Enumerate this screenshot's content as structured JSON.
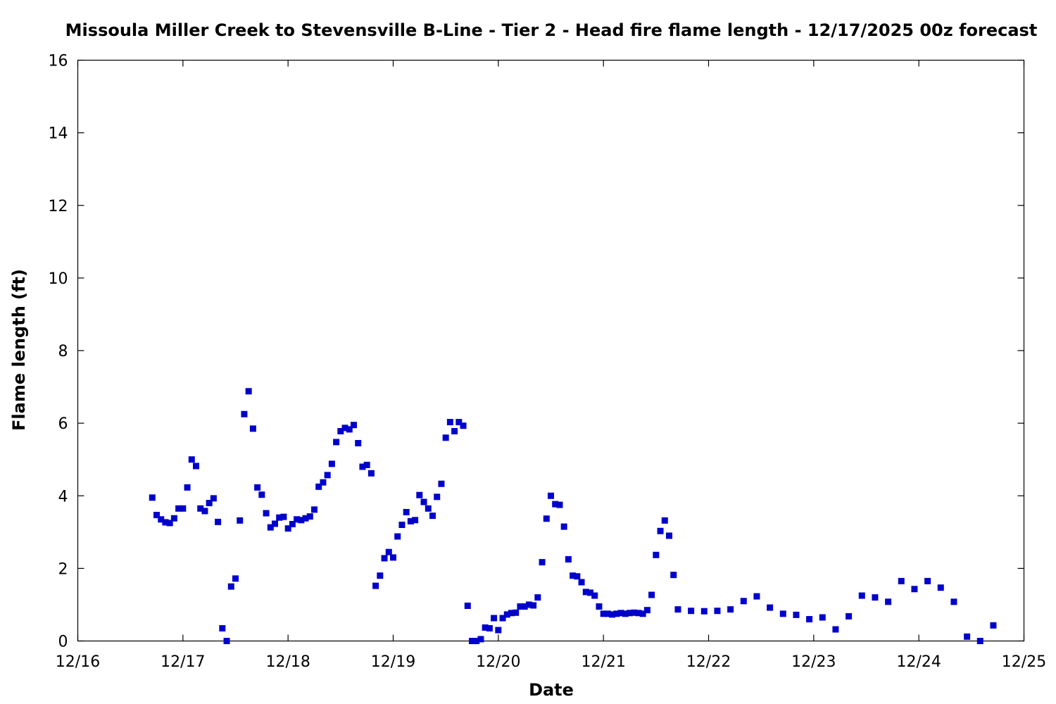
{
  "chart_data": {
    "type": "scatter",
    "title": "Missoula Miller Creek to Stevensville B-Line - Tier 2 - Head fire flame length - 12/17/2025 00z forecast",
    "xlabel": "Date",
    "ylabel": "Flame length (ft)",
    "xlim": [
      "12/16 00:00",
      "12/25 00:00"
    ],
    "ylim": [
      0,
      16
    ],
    "x_ticks": [
      "12/16",
      "12/17",
      "12/18",
      "12/19",
      "12/20",
      "12/21",
      "12/22",
      "12/23",
      "12/24",
      "12/25"
    ],
    "y_ticks": [
      "0",
      "2",
      "4",
      "6",
      "8",
      "10",
      "12",
      "14",
      "16"
    ],
    "grid": false,
    "legend": "none",
    "marker_color": "#0000cc",
    "series": [
      {
        "points": [
          [
            "12/16 17:00",
            3.95
          ],
          [
            "12/16 18:00",
            3.47
          ],
          [
            "12/16 19:00",
            3.35
          ],
          [
            "12/16 20:00",
            3.27
          ],
          [
            "12/16 21:00",
            3.25
          ],
          [
            "12/16 22:00",
            3.38
          ],
          [
            "12/16 23:00",
            3.65
          ],
          [
            "12/17 00:00",
            3.65
          ],
          [
            "12/17 01:00",
            4.23
          ],
          [
            "12/17 02:00",
            5.0
          ],
          [
            "12/17 03:00",
            4.82
          ],
          [
            "12/17 04:00",
            3.65
          ],
          [
            "12/17 05:00",
            3.58
          ],
          [
            "12/17 06:00",
            3.8
          ],
          [
            "12/17 07:00",
            3.93
          ],
          [
            "12/17 08:00",
            3.28
          ],
          [
            "12/17 09:00",
            0.35
          ],
          [
            "12/17 10:00",
            0.0
          ],
          [
            "12/17 11:00",
            1.5
          ],
          [
            "12/17 12:00",
            1.72
          ],
          [
            "12/17 13:00",
            3.32
          ],
          [
            "12/17 14:00",
            6.25
          ],
          [
            "12/17 15:00",
            6.88
          ],
          [
            "12/17 16:00",
            5.85
          ],
          [
            "12/17 17:00",
            4.23
          ],
          [
            "12/17 18:00",
            4.03
          ],
          [
            "12/17 19:00",
            3.52
          ],
          [
            "12/17 20:00",
            3.13
          ],
          [
            "12/17 21:00",
            3.23
          ],
          [
            "12/17 22:00",
            3.4
          ],
          [
            "12/17 23:00",
            3.42
          ],
          [
            "12/18 00:00",
            3.1
          ],
          [
            "12/18 01:00",
            3.22
          ],
          [
            "12/18 02:00",
            3.35
          ],
          [
            "12/18 03:00",
            3.33
          ],
          [
            "12/18 04:00",
            3.38
          ],
          [
            "12/18 05:00",
            3.43
          ],
          [
            "12/18 06:00",
            3.62
          ],
          [
            "12/18 07:00",
            4.25
          ],
          [
            "12/18 08:00",
            4.37
          ],
          [
            "12/18 09:00",
            4.57
          ],
          [
            "12/18 10:00",
            4.88
          ],
          [
            "12/18 11:00",
            5.48
          ],
          [
            "12/18 12:00",
            5.78
          ],
          [
            "12/18 13:00",
            5.87
          ],
          [
            "12/18 14:00",
            5.83
          ],
          [
            "12/18 15:00",
            5.95
          ],
          [
            "12/18 16:00",
            5.45
          ],
          [
            "12/18 17:00",
            4.8
          ],
          [
            "12/18 18:00",
            4.85
          ],
          [
            "12/18 19:00",
            4.62
          ],
          [
            "12/18 20:00",
            1.52
          ],
          [
            "12/18 21:00",
            1.8
          ],
          [
            "12/18 22:00",
            2.28
          ],
          [
            "12/18 23:00",
            2.45
          ],
          [
            "12/19 00:00",
            2.3
          ],
          [
            "12/19 01:00",
            2.88
          ],
          [
            "12/19 02:00",
            3.2
          ],
          [
            "12/19 03:00",
            3.55
          ],
          [
            "12/19 04:00",
            3.3
          ],
          [
            "12/19 05:00",
            3.33
          ],
          [
            "12/19 06:00",
            4.02
          ],
          [
            "12/19 07:00",
            3.83
          ],
          [
            "12/19 08:00",
            3.65
          ],
          [
            "12/19 09:00",
            3.45
          ],
          [
            "12/19 10:00",
            3.97
          ],
          [
            "12/19 11:00",
            4.33
          ],
          [
            "12/19 12:00",
            5.6
          ],
          [
            "12/19 13:00",
            6.03
          ],
          [
            "12/19 14:00",
            5.78
          ],
          [
            "12/19 15:00",
            6.03
          ],
          [
            "12/19 16:00",
            5.93
          ],
          [
            "12/19 17:00",
            0.97
          ],
          [
            "12/19 18:00",
            0.0
          ],
          [
            "12/19 19:00",
            0.0
          ],
          [
            "12/19 20:00",
            0.05
          ],
          [
            "12/19 21:00",
            0.37
          ],
          [
            "12/19 22:00",
            0.35
          ],
          [
            "12/19 23:00",
            0.63
          ],
          [
            "12/20 00:00",
            0.3
          ],
          [
            "12/20 01:00",
            0.63
          ],
          [
            "12/20 02:00",
            0.73
          ],
          [
            "12/20 03:00",
            0.77
          ],
          [
            "12/20 04:00",
            0.78
          ],
          [
            "12/20 05:00",
            0.95
          ],
          [
            "12/20 06:00",
            0.95
          ],
          [
            "12/20 07:00",
            1.0
          ],
          [
            "12/20 08:00",
            0.98
          ],
          [
            "12/20 09:00",
            1.2
          ],
          [
            "12/20 10:00",
            2.17
          ],
          [
            "12/20 11:00",
            3.37
          ],
          [
            "12/20 12:00",
            4.0
          ],
          [
            "12/20 13:00",
            3.77
          ],
          [
            "12/20 14:00",
            3.75
          ],
          [
            "12/20 15:00",
            3.15
          ],
          [
            "12/20 16:00",
            2.25
          ],
          [
            "12/20 17:00",
            1.8
          ],
          [
            "12/20 18:00",
            1.78
          ],
          [
            "12/20 19:00",
            1.62
          ],
          [
            "12/20 20:00",
            1.35
          ],
          [
            "12/20 21:00",
            1.33
          ],
          [
            "12/20 22:00",
            1.25
          ],
          [
            "12/20 23:00",
            0.95
          ],
          [
            "12/21 00:00",
            0.75
          ],
          [
            "12/21 01:00",
            0.75
          ],
          [
            "12/21 02:00",
            0.73
          ],
          [
            "12/21 03:00",
            0.75
          ],
          [
            "12/21 04:00",
            0.77
          ],
          [
            "12/21 05:00",
            0.75
          ],
          [
            "12/21 06:00",
            0.77
          ],
          [
            "12/21 07:00",
            0.78
          ],
          [
            "12/21 08:00",
            0.77
          ],
          [
            "12/21 09:00",
            0.75
          ],
          [
            "12/21 10:00",
            0.85
          ],
          [
            "12/21 11:00",
            1.27
          ],
          [
            "12/21 12:00",
            2.37
          ],
          [
            "12/21 13:00",
            3.03
          ],
          [
            "12/21 14:00",
            3.32
          ],
          [
            "12/21 15:00",
            2.9
          ],
          [
            "12/21 16:00",
            1.82
          ],
          [
            "12/21 17:00",
            0.87
          ],
          [
            "12/21 20:00",
            0.83
          ],
          [
            "12/21 23:00",
            0.82
          ],
          [
            "12/22 02:00",
            0.83
          ],
          [
            "12/22 05:00",
            0.87
          ],
          [
            "12/22 08:00",
            1.1
          ],
          [
            "12/22 11:00",
            1.23
          ],
          [
            "12/22 14:00",
            0.92
          ],
          [
            "12/22 17:00",
            0.75
          ],
          [
            "12/22 20:00",
            0.72
          ],
          [
            "12/22 23:00",
            0.6
          ],
          [
            "12/23 02:00",
            0.65
          ],
          [
            "12/23 05:00",
            0.32
          ],
          [
            "12/23 08:00",
            0.68
          ],
          [
            "12/23 11:00",
            1.25
          ],
          [
            "12/23 14:00",
            1.2
          ],
          [
            "12/23 17:00",
            1.08
          ],
          [
            "12/23 20:00",
            1.65
          ],
          [
            "12/23 23:00",
            1.43
          ],
          [
            "12/24 02:00",
            1.65
          ],
          [
            "12/24 05:00",
            1.47
          ],
          [
            "12/24 08:00",
            1.08
          ],
          [
            "12/24 11:00",
            0.12
          ],
          [
            "12/24 14:00",
            0.0
          ],
          [
            "12/24 17:00",
            0.43
          ]
        ]
      }
    ]
  }
}
